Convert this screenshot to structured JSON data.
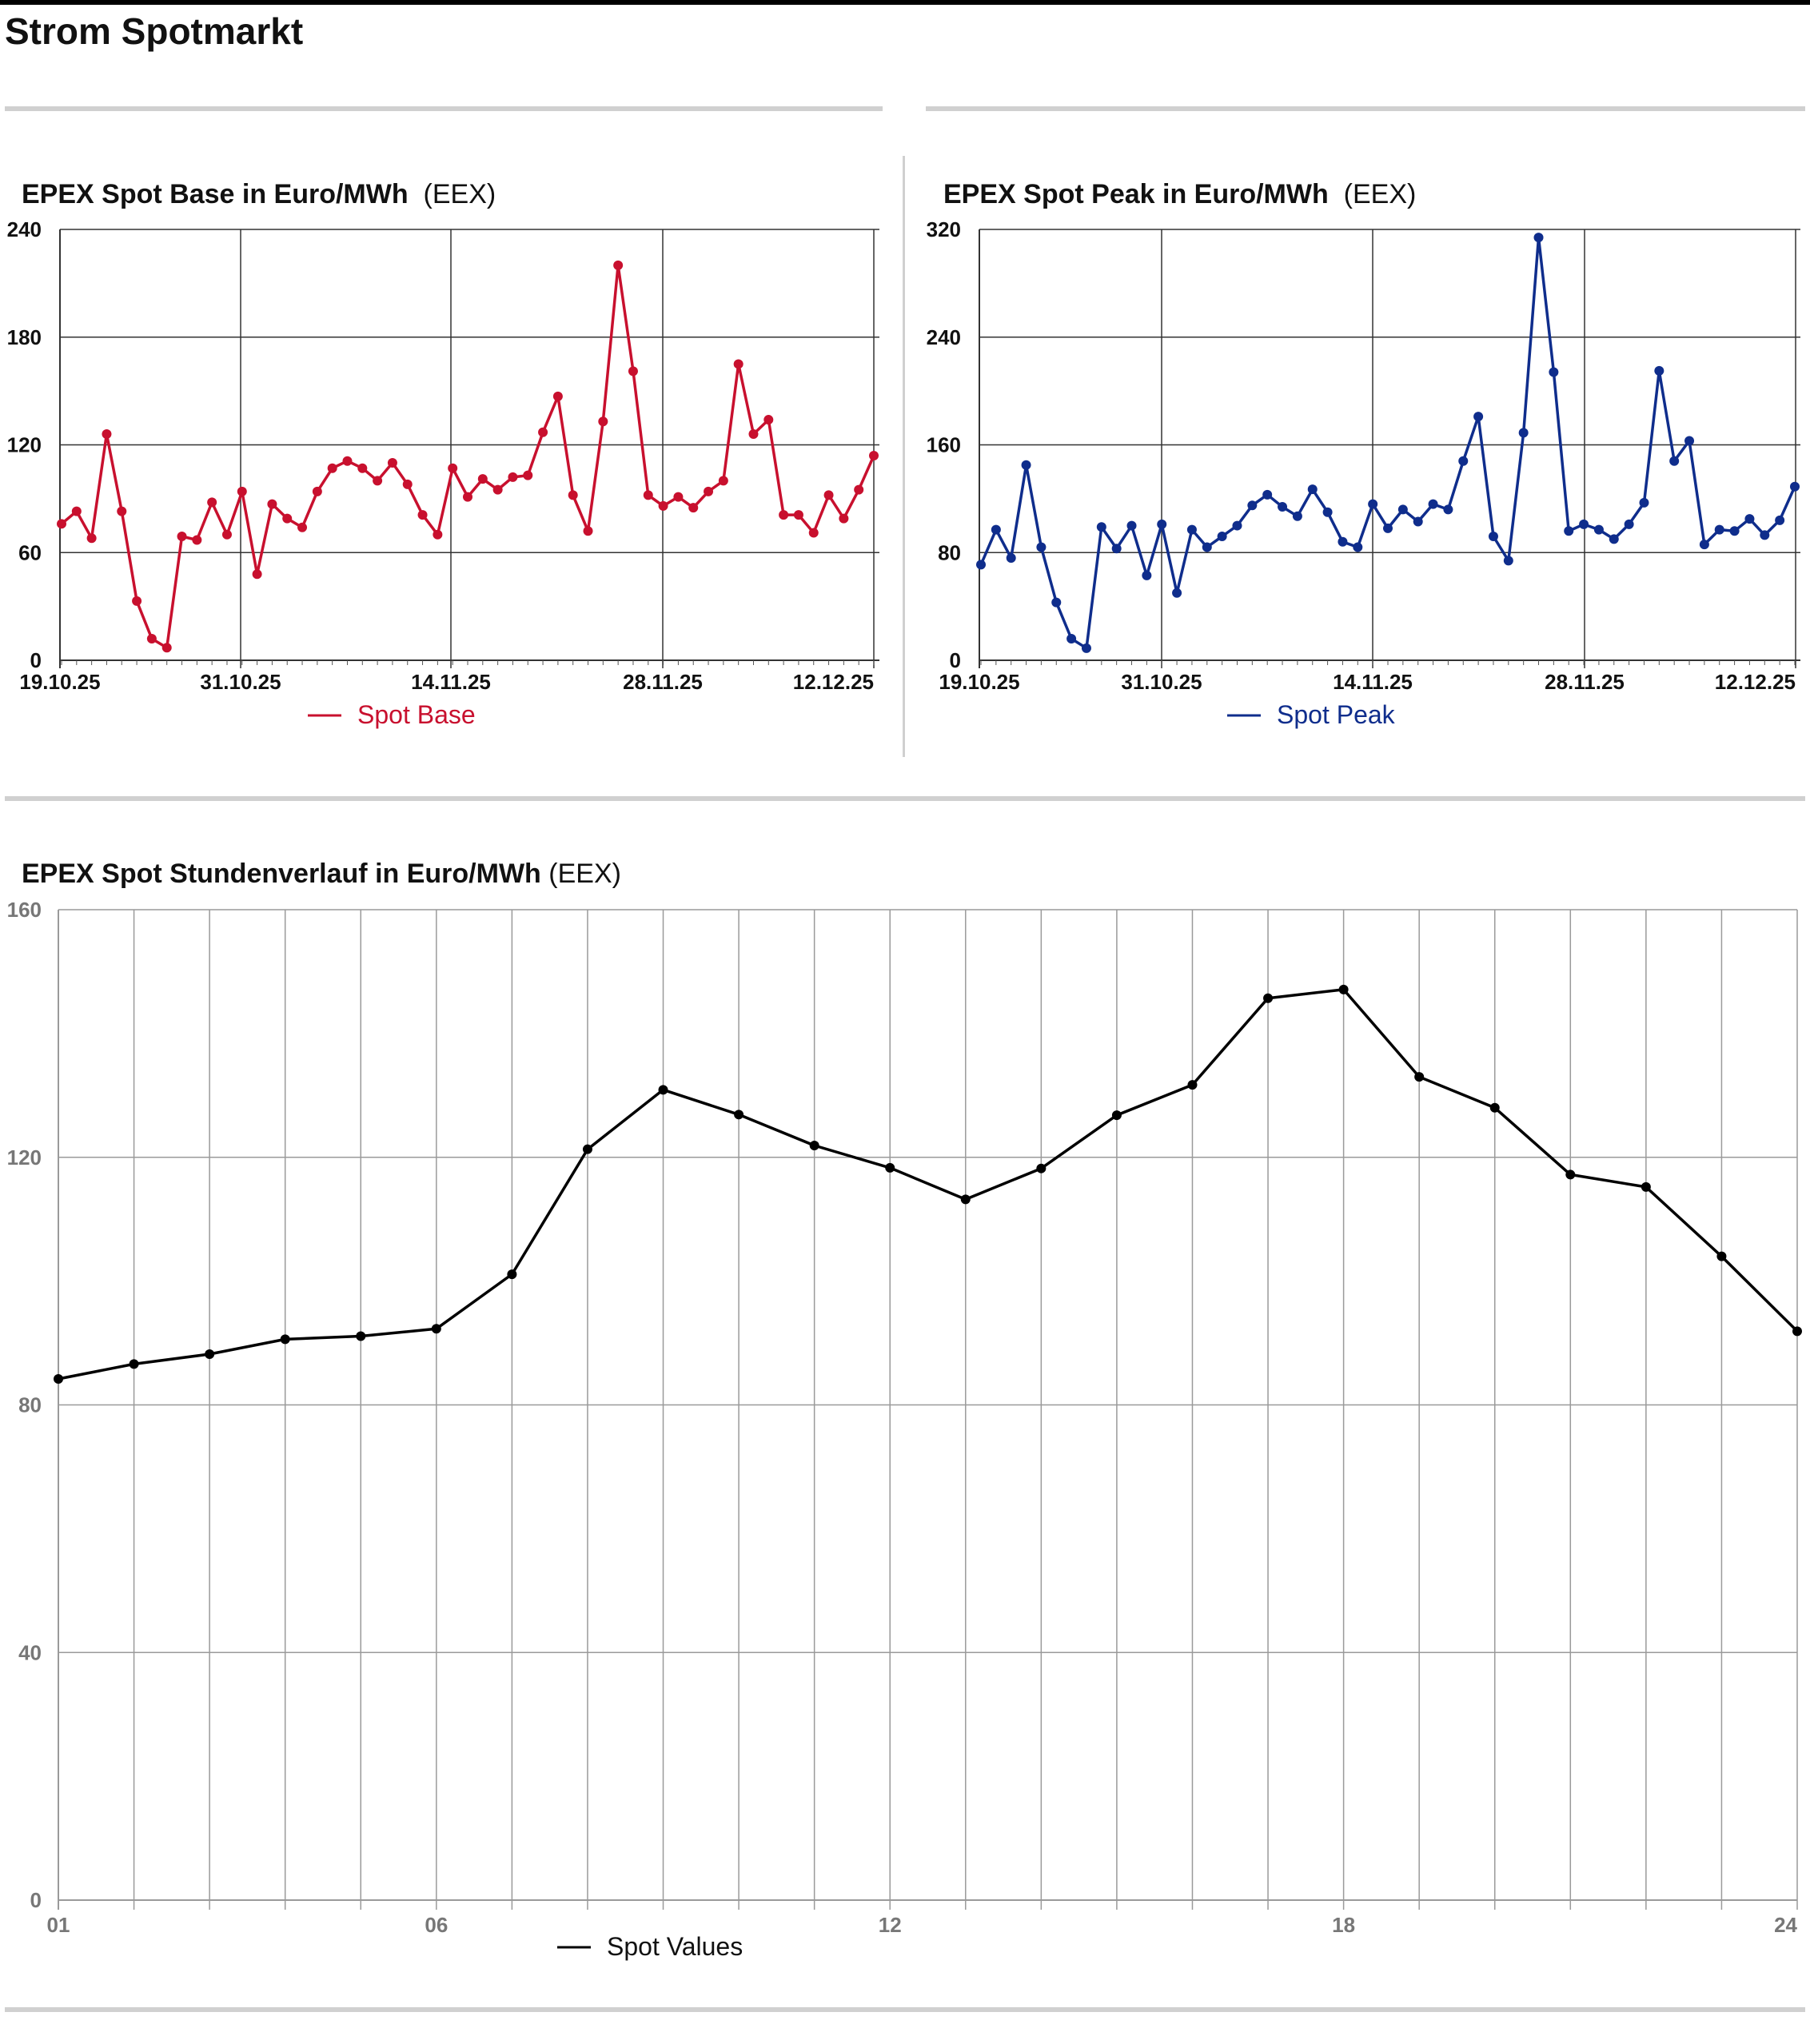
{
  "page": {
    "title": "Strom Spotmarkt"
  },
  "chart_data": [
    {
      "type": "line",
      "title": "EPEX Spot Base in Euro/MWh",
      "source": "(EEX)",
      "color": "#c8102e",
      "ylim": [
        0,
        240
      ],
      "yticks": [
        "0",
        "60",
        "120",
        "180",
        "240"
      ],
      "xtick_labels": [
        "19.10.25",
        "31.10.25",
        "14.11.25",
        "28.11.25",
        "12.12.25"
      ],
      "legend": "Spot Base",
      "series": [
        {
          "name": "Spot Base",
          "values": [
            76,
            83,
            68,
            126,
            83,
            33,
            12,
            7,
            69,
            67,
            88,
            70,
            94,
            48,
            87,
            79,
            74,
            94,
            107,
            111,
            107,
            100,
            110,
            98,
            81,
            70,
            107,
            91,
            101,
            95,
            102,
            103,
            127,
            147,
            92,
            72,
            133,
            220,
            161,
            92,
            86,
            91,
            85,
            94,
            100,
            165,
            126,
            134,
            81,
            81,
            71,
            92,
            79,
            95,
            114
          ]
        }
      ]
    },
    {
      "type": "line",
      "title": "EPEX Spot Peak in Euro/MWh",
      "source": "(EEX)",
      "color": "#0f2d8c",
      "ylim": [
        0,
        320
      ],
      "yticks": [
        "0",
        "80",
        "160",
        "240",
        "320"
      ],
      "xtick_labels": [
        "19.10.25",
        "31.10.25",
        "14.11.25",
        "28.11.25",
        "12.12.25"
      ],
      "legend": "Spot Peak",
      "series": [
        {
          "name": "Spot Peak",
          "values": [
            71,
            97,
            76,
            145,
            84,
            43,
            16,
            9,
            99,
            83,
            100,
            63,
            101,
            50,
            97,
            84,
            92,
            100,
            115,
            123,
            114,
            107,
            127,
            110,
            88,
            84,
            116,
            98,
            112,
            103,
            116,
            112,
            148,
            181,
            92,
            74,
            169,
            314,
            214,
            96,
            101,
            97,
            90,
            101,
            117,
            215,
            148,
            163,
            86,
            97,
            96,
            105,
            93,
            104,
            129
          ]
        }
      ]
    },
    {
      "type": "line",
      "title": "EPEX Spot Stundenverlauf in Euro/MWh",
      "source": "(EEX)",
      "color": "#000000",
      "ylim": [
        0,
        160
      ],
      "yticks": [
        "0",
        "40",
        "80",
        "120",
        "160"
      ],
      "x": [
        1,
        2,
        3,
        4,
        5,
        6,
        7,
        8,
        9,
        10,
        11,
        12,
        13,
        14,
        15,
        16,
        17,
        18,
        19,
        20,
        21,
        22,
        23,
        24
      ],
      "xtick_labels": [
        "01",
        "06",
        "12",
        "18",
        "24"
      ],
      "legend": "Spot Values",
      "series": [
        {
          "name": "Spot Values",
          "values": [
            84.2,
            86.6,
            88.2,
            90.6,
            91.1,
            92.3,
            101.1,
            121.3,
            130.9,
            126.9,
            121.9,
            118.3,
            113.2,
            118.2,
            126.8,
            131.7,
            145.7,
            147.1,
            133.0,
            128.0,
            117.2,
            115.2,
            104.0,
            91.9
          ]
        }
      ]
    }
  ]
}
